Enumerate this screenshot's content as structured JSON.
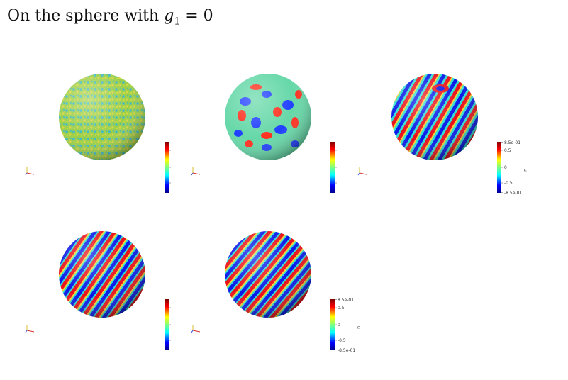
{
  "title": {
    "prefix": "On the sphere with ",
    "var": "g",
    "sub": "1",
    "rest": " = 0"
  },
  "panels": [
    {
      "pattern": "noise",
      "colorbar_labels": []
    },
    {
      "pattern": "spots",
      "colorbar_labels": []
    },
    {
      "pattern": "stripes-mixed",
      "colorbar_labels": [
        "8.5e-01",
        "0.5",
        "0",
        "-0.5",
        "-8.5e-01"
      ],
      "colorbar_var": "u"
    },
    {
      "pattern": "stripes",
      "colorbar_labels": []
    },
    {
      "pattern": "stripes-final",
      "colorbar_labels": [
        "8.5e-01",
        "0.5",
        "0",
        "-0.5",
        "-8.5e-01"
      ],
      "colorbar_var": "u"
    }
  ]
}
